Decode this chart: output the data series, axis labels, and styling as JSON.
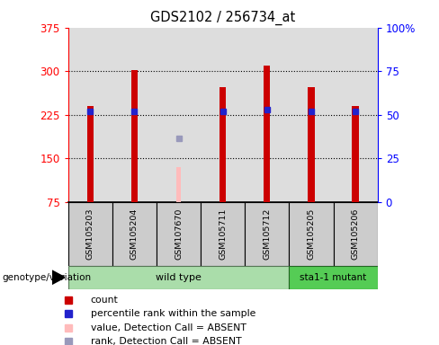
{
  "title": "GDS2102 / 256734_at",
  "samples": [
    "GSM105203",
    "GSM105204",
    "GSM107670",
    "GSM105711",
    "GSM105712",
    "GSM105205",
    "GSM105206"
  ],
  "count_values": [
    240,
    302,
    null,
    272,
    310,
    272,
    240
  ],
  "percentile_values": [
    52,
    52,
    null,
    52,
    53,
    52,
    52
  ],
  "absent_value_bar": [
    null,
    null,
    135,
    null,
    null,
    null,
    null
  ],
  "absent_rank_dot": [
    null,
    null,
    185,
    null,
    null,
    null,
    null
  ],
  "ylim_left": [
    75,
    375
  ],
  "ylim_right": [
    0,
    100
  ],
  "left_ticks": [
    75,
    150,
    225,
    300,
    375
  ],
  "right_ticks": [
    0,
    25,
    50,
    75,
    100
  ],
  "right_tick_labels": [
    "0",
    "25",
    "50",
    "75",
    "100%"
  ],
  "bar_width": 0.15,
  "bar_color_red": "#cc0000",
  "bar_color_pink": "#ffbbbb",
  "dot_color_blue": "#2222cc",
  "dot_color_light_blue": "#9999bb",
  "group_wild_color": "#aaddaa",
  "group_mutant_color": "#55cc55",
  "axis_bg": "#dddddd",
  "genotype_label": "genotype/variation",
  "wild_type_label": "wild type",
  "mutant_label": "sta1-1 mutant",
  "legend": [
    {
      "label": "count",
      "color": "#cc0000"
    },
    {
      "label": "percentile rank within the sample",
      "color": "#2222cc"
    },
    {
      "label": "value, Detection Call = ABSENT",
      "color": "#ffbbbb"
    },
    {
      "label": "rank, Detection Call = ABSENT",
      "color": "#9999bb"
    }
  ],
  "wild_count": 5,
  "mutant_count": 2
}
